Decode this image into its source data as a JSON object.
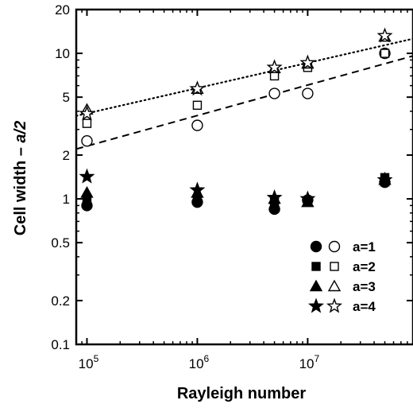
{
  "chart_data": {
    "type": "scatter",
    "x_scale": "log",
    "y_scale": "log",
    "xlim": [
      80000,
      90000000
    ],
    "ylim": [
      0.1,
      20
    ],
    "xlabel": "Rayleigh number",
    "ylabel_prefix": "Cell width – ",
    "ylabel_italic": "a/2",
    "x_ticks": [
      {
        "value": 100000,
        "base": "10",
        "exp": "5"
      },
      {
        "value": 1000000,
        "base": "10",
        "exp": "6"
      },
      {
        "value": 10000000,
        "base": "10",
        "exp": "7"
      }
    ],
    "y_ticks": [
      {
        "value": 0.1,
        "label": "0.1"
      },
      {
        "value": 0.2,
        "label": "0.2"
      },
      {
        "value": 0.5,
        "label": "0.5"
      },
      {
        "value": 1,
        "label": "1"
      },
      {
        "value": 2,
        "label": "2"
      },
      {
        "value": 5,
        "label": "5"
      },
      {
        "value": 10,
        "label": "10"
      },
      {
        "value": 20,
        "label": "20"
      }
    ],
    "legend_position": "bottom-right",
    "series": [
      {
        "name": "a=1",
        "marker": "circle",
        "filled": true,
        "points": [
          [
            100000,
            0.9
          ],
          [
            1000000,
            0.95
          ],
          [
            5000000,
            0.85
          ],
          [
            10000000,
            0.98
          ],
          [
            50000000,
            1.3
          ]
        ]
      },
      {
        "name": "a=2",
        "marker": "square",
        "filled": true,
        "points": [
          [
            100000,
            1.0
          ],
          [
            1000000,
            1.0
          ],
          [
            5000000,
            0.95
          ],
          [
            10000000,
            0.95
          ],
          [
            50000000,
            1.4
          ]
        ]
      },
      {
        "name": "a=3",
        "marker": "triangle",
        "filled": true,
        "points": [
          [
            100000,
            1.1
          ],
          [
            1000000,
            1.1
          ],
          [
            5000000,
            1.0
          ],
          [
            10000000,
            0.95
          ],
          [
            50000000,
            1.35
          ]
        ]
      },
      {
        "name": "a=4",
        "marker": "star",
        "filled": true,
        "points": [
          [
            100000,
            1.42
          ],
          [
            1000000,
            1.15
          ],
          [
            5000000,
            1.02
          ],
          [
            10000000,
            1.0
          ],
          [
            50000000,
            1.35
          ]
        ]
      },
      {
        "name": "a=1",
        "marker": "circle",
        "filled": false,
        "points": [
          [
            100000,
            2.5
          ],
          [
            1000000,
            3.2
          ],
          [
            5000000,
            5.3
          ],
          [
            10000000,
            5.3
          ],
          [
            50000000,
            10.0
          ]
        ]
      },
      {
        "name": "a=2",
        "marker": "square",
        "filled": false,
        "points": [
          [
            100000,
            3.3
          ],
          [
            1000000,
            4.4
          ],
          [
            5000000,
            7.0
          ],
          [
            10000000,
            8.0
          ],
          [
            50000000,
            10.0
          ]
        ]
      },
      {
        "name": "a=3",
        "marker": "triangle",
        "filled": false,
        "points": [
          [
            100000,
            4.1
          ],
          [
            1000000,
            5.7
          ],
          [
            5000000,
            7.9
          ],
          [
            10000000,
            8.5
          ],
          [
            50000000,
            13.0
          ]
        ]
      },
      {
        "name": "a=4",
        "marker": "star",
        "filled": false,
        "points": [
          [
            100000,
            3.85
          ],
          [
            1000000,
            5.7
          ],
          [
            5000000,
            8.0
          ],
          [
            10000000,
            8.6
          ],
          [
            50000000,
            13.2
          ]
        ]
      }
    ],
    "fit_lines": [
      {
        "style": "dashed",
        "from": [
          80000,
          2.2
        ],
        "to": [
          90000000,
          9.6
        ]
      },
      {
        "style": "dotted",
        "from": [
          80000,
          3.72
        ],
        "to": [
          90000000,
          12.6
        ]
      }
    ],
    "legend": [
      {
        "label": "a=1",
        "marker": "circle"
      },
      {
        "label": "a=2",
        "marker": "square"
      },
      {
        "label": "a=3",
        "marker": "triangle"
      },
      {
        "label": "a=4",
        "marker": "star"
      }
    ]
  }
}
